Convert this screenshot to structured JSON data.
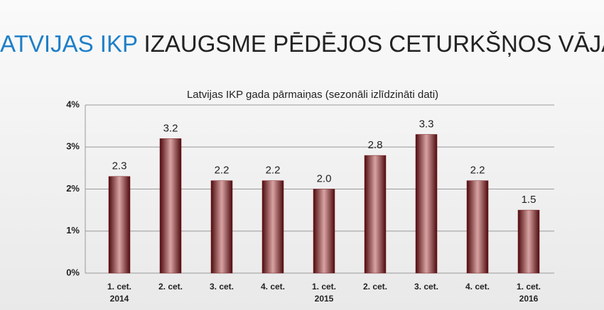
{
  "slide_title": {
    "highlight": "LATVIJAS IKP",
    "rest": "IZAUGSME PĒDĒJOS CETURKŠŅOS VĀJA"
  },
  "chart_data": {
    "type": "bar",
    "title": "Latvijas IKP gada pārmaiņas (sezonāli izlīdzināti dati)",
    "categories": [
      "1. cet.",
      "2. cet.",
      "3. cet.",
      "4. cet.",
      "1. cet.",
      "2. cet.",
      "3. cet.",
      "4. cet.",
      "1. cet."
    ],
    "category_years": [
      "2014",
      null,
      null,
      null,
      "2015",
      null,
      null,
      null,
      "2016"
    ],
    "values": [
      2.3,
      3.2,
      2.2,
      2.2,
      2.0,
      2.8,
      3.3,
      2.2,
      1.5
    ],
    "value_labels": [
      "2.3",
      "3.2",
      "2.2",
      "2.2",
      "2.0",
      "2.8",
      "3.3",
      "2.2",
      "1.5"
    ],
    "color": "#7b1a1f",
    "ylim": [
      0,
      4
    ],
    "yticks": [
      {
        "value": 0,
        "label": "0%"
      },
      {
        "value": 1,
        "label": "1%"
      },
      {
        "value": 2,
        "label": "2%"
      },
      {
        "value": 3,
        "label": "3%"
      },
      {
        "value": 4,
        "label": "4%"
      }
    ],
    "grid": true
  }
}
